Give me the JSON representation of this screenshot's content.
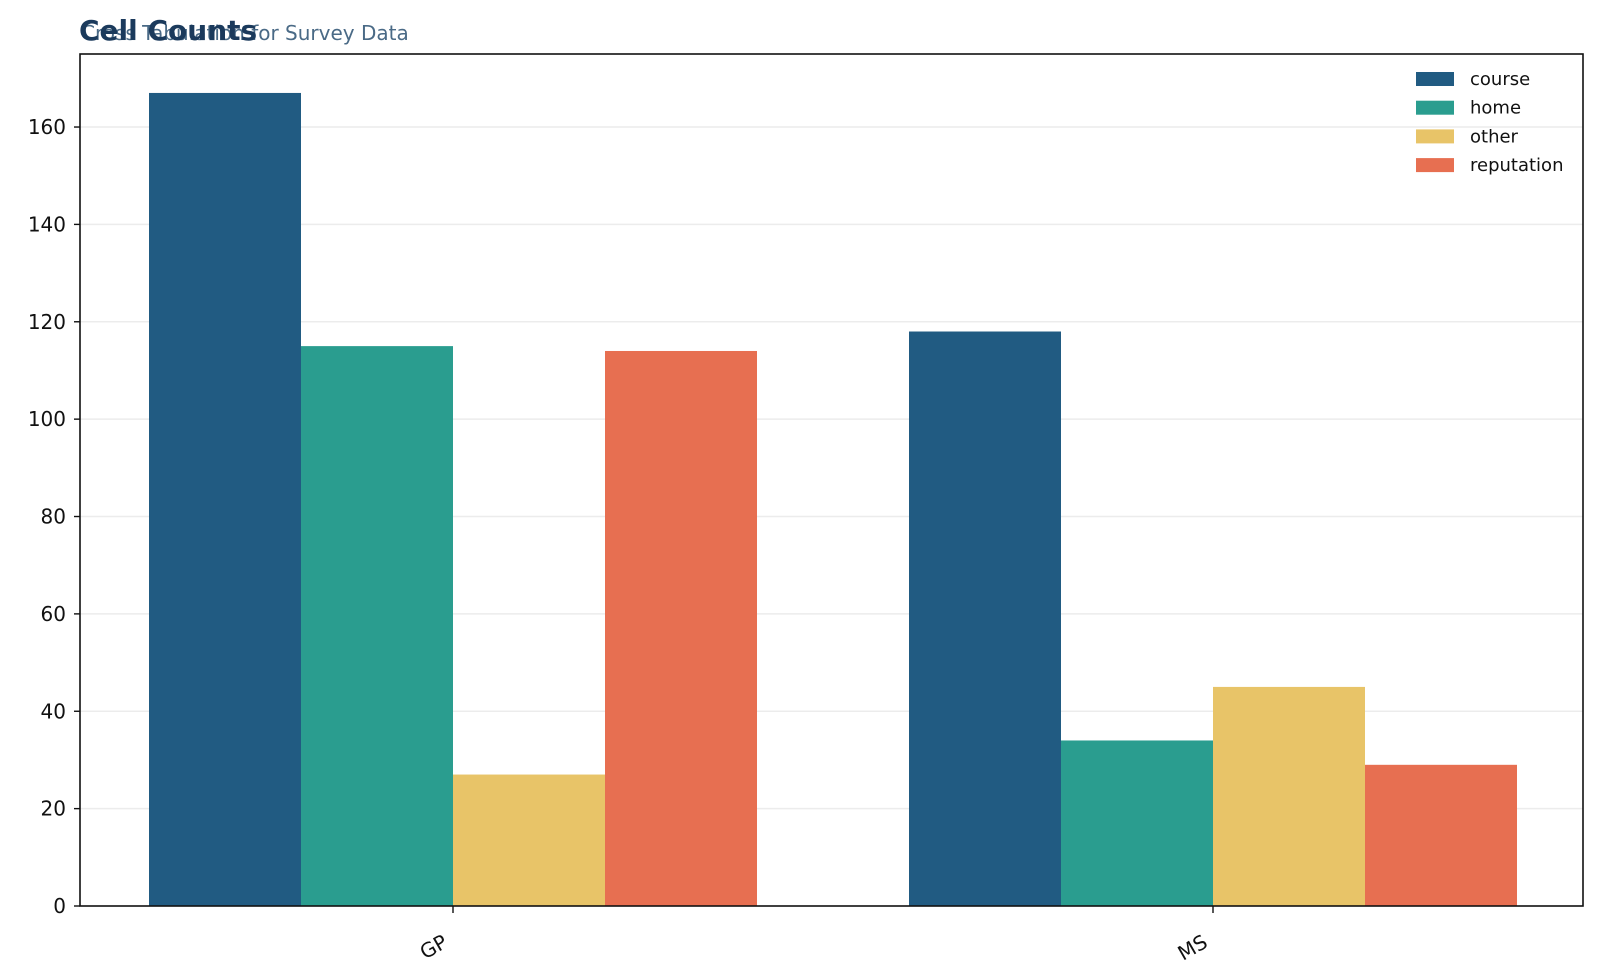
{
  "colors": {
    "title": "#1b3a5c",
    "subtitle": "#4a6a86",
    "grid": "#ececec",
    "axis": "#111111"
  },
  "chart_data": {
    "type": "bar",
    "title": "Cell Counts",
    "subtitle": "Cross Tabulation for Survey Data",
    "xlabel": "",
    "ylabel": "",
    "categories": [
      "GP",
      "MS"
    ],
    "series": [
      {
        "name": "course",
        "color": "#215b82",
        "values": [
          167,
          118
        ]
      },
      {
        "name": "home",
        "color": "#2a9d8f",
        "values": [
          115,
          34
        ]
      },
      {
        "name": "other",
        "color": "#e8c468",
        "values": [
          27,
          45
        ]
      },
      {
        "name": "reputation",
        "color": "#e76f51",
        "values": [
          114,
          29
        ]
      }
    ],
    "ylim": [
      0,
      175
    ],
    "yticks": [
      0,
      20,
      40,
      60,
      80,
      100,
      120,
      140,
      160
    ],
    "grid": true,
    "legend": "top-right"
  }
}
